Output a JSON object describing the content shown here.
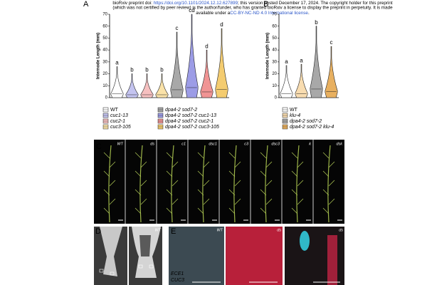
{
  "header": {
    "line1": [
      "bioRxiv preprint doi: ",
      "https://doi.org/10.1101/2024.12.12.627899",
      "; this version posted December 17, 2024. The copyright holder for this preprint"
    ],
    "line2": "(which was not certified by peer review) is the author/funder, who has granted bioRxiv a license to display the preprint in perpetuity. It is made",
    "line3": [
      "available under a",
      "CC-BY-NC-ND 4.0 International license",
      "."
    ]
  },
  "panels": {
    "A": {
      "label": "A",
      "y_label": "Internode Length (mm)",
      "ylim": [
        0,
        70
      ],
      "yticks": [
        0,
        10,
        20,
        30,
        40,
        50,
        60,
        70
      ],
      "groups": [
        {
          "name": "WT",
          "letter": "a",
          "max": 26,
          "color": "#ffffff"
        },
        {
          "name": "cuc1-13",
          "letter": "b",
          "max": 20,
          "color": "#c4c4f0"
        },
        {
          "name": "cuc2-1",
          "letter": "b",
          "max": 20,
          "color": "#f6c0c0"
        },
        {
          "name": "cuc3-105",
          "letter": "b",
          "max": 20,
          "color": "#fae2a8"
        },
        {
          "name": "dpa4-2 sod7-2",
          "letter": "c",
          "max": 55,
          "color": "#a8a8a8"
        },
        {
          "name": "dpa4-2 sod7-2 cuc1-13",
          "letter": "cd",
          "max": 70,
          "color": "#9c9ce6"
        },
        {
          "name": "dpa4-2 sod7-2 cuc2-1",
          "letter": "d",
          "max": 40,
          "color": "#f09494"
        },
        {
          "name": "dpa4-2 sod7-2 cuc3-105",
          "letter": "d",
          "max": 58,
          "color": "#f4cc70"
        }
      ]
    },
    "B": {
      "label": "B",
      "y_label": "Internode Length (mm)",
      "ylim": [
        0,
        70
      ],
      "yticks": [
        0,
        10,
        20,
        30,
        40,
        50,
        60,
        70
      ],
      "groups": [
        {
          "name": "WT",
          "letter": "a",
          "max": 27,
          "color": "#ffffff"
        },
        {
          "name": "klu-4",
          "letter": "a",
          "max": 28,
          "color": "#f8dcb0"
        },
        {
          "name": "dpa4-2 sod7-2",
          "letter": "b",
          "max": 60,
          "color": "#a8a8a8"
        },
        {
          "name": "dpa4-2 sod7-2 klu-4",
          "letter": "c",
          "max": 43,
          "color": "#e8b060"
        }
      ]
    },
    "C": {
      "label": "C",
      "labels": [
        "WT",
        "ds",
        "c1",
        "dsc1",
        "c3",
        "dsc3",
        "k",
        "dsk"
      ]
    },
    "D": {
      "label": "D",
      "labels": [
        "WT"
      ]
    },
    "E": {
      "label": "E",
      "labels": [
        "WT",
        "ds",
        "ds"
      ],
      "channels": [
        "ECE1",
        "CUC3"
      ]
    }
  }
}
